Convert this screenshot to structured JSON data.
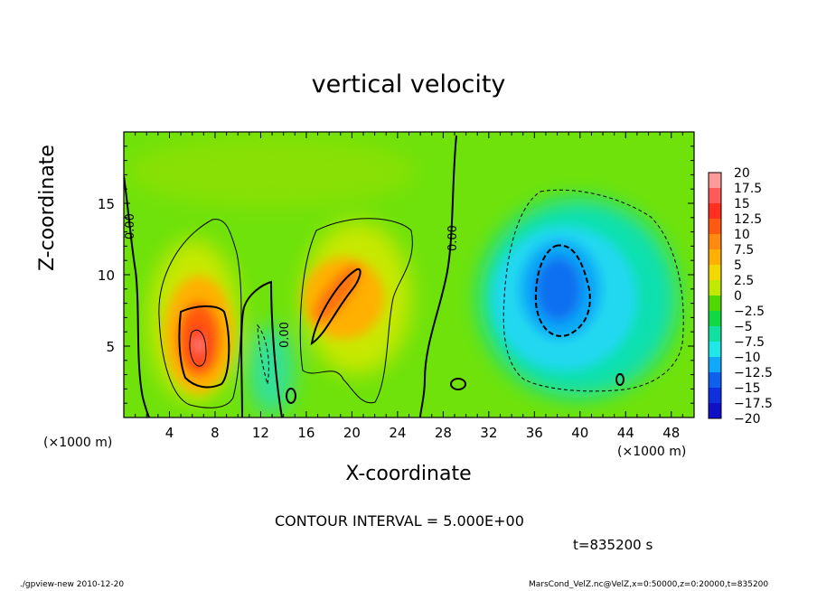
{
  "chart_data": {
    "type": "heatmap",
    "title": "vertical velocity",
    "xlabel": "X-coordinate",
    "ylabel": "Z-coordinate",
    "x_unit": "(×1000 m)",
    "z_unit": "(×1000 m)",
    "xlim": [
      0,
      50
    ],
    "zlim": [
      0,
      20
    ],
    "x_ticks": [
      "4",
      "8",
      "12",
      "16",
      "20",
      "24",
      "28",
      "32",
      "36",
      "40",
      "44",
      "48"
    ],
    "z_ticks": [
      "5",
      "10",
      "15"
    ],
    "colorbar": {
      "labels": [
        "20",
        "17.5",
        "15",
        "12.5",
        "10",
        "7.5",
        "5",
        "2.5",
        "0",
        "−2.5",
        "−5",
        "−7.5",
        "−10",
        "−12.5",
        "−15",
        "−17.5",
        "−20"
      ],
      "colors": [
        "#ff9a9a",
        "#ff5a5a",
        "#ff3020",
        "#ff5a10",
        "#ff8a10",
        "#ffb000",
        "#f0d800",
        "#c0e800",
        "#50d800",
        "#10d840",
        "#10e0a0",
        "#20e8e8",
        "#10a8f8",
        "#1060f0",
        "#1030e0",
        "#1010c8",
        "#6010b0"
      ]
    },
    "features": [
      {
        "type": "updraft",
        "x_center": 6.5,
        "z_center": 4.5,
        "peak": 20
      },
      {
        "type": "updraft",
        "x_center": 18.5,
        "z_center": 8.5,
        "peak": 15
      },
      {
        "type": "downdraft",
        "x_center": 38.5,
        "z_center": 9,
        "peak": -12.5
      }
    ],
    "contour_labels": [
      "0.00",
      "0.00",
      "0.00"
    ],
    "contour_interval": "CONTOUR INTERVAL = 5.000E+00",
    "time": "t=835200 s"
  },
  "footer": {
    "left": "./gpview-new  2010-12-20",
    "right": "MarsCond_VelZ.nc@VelZ,x=0:50000,z=0:20000,t=835200"
  }
}
